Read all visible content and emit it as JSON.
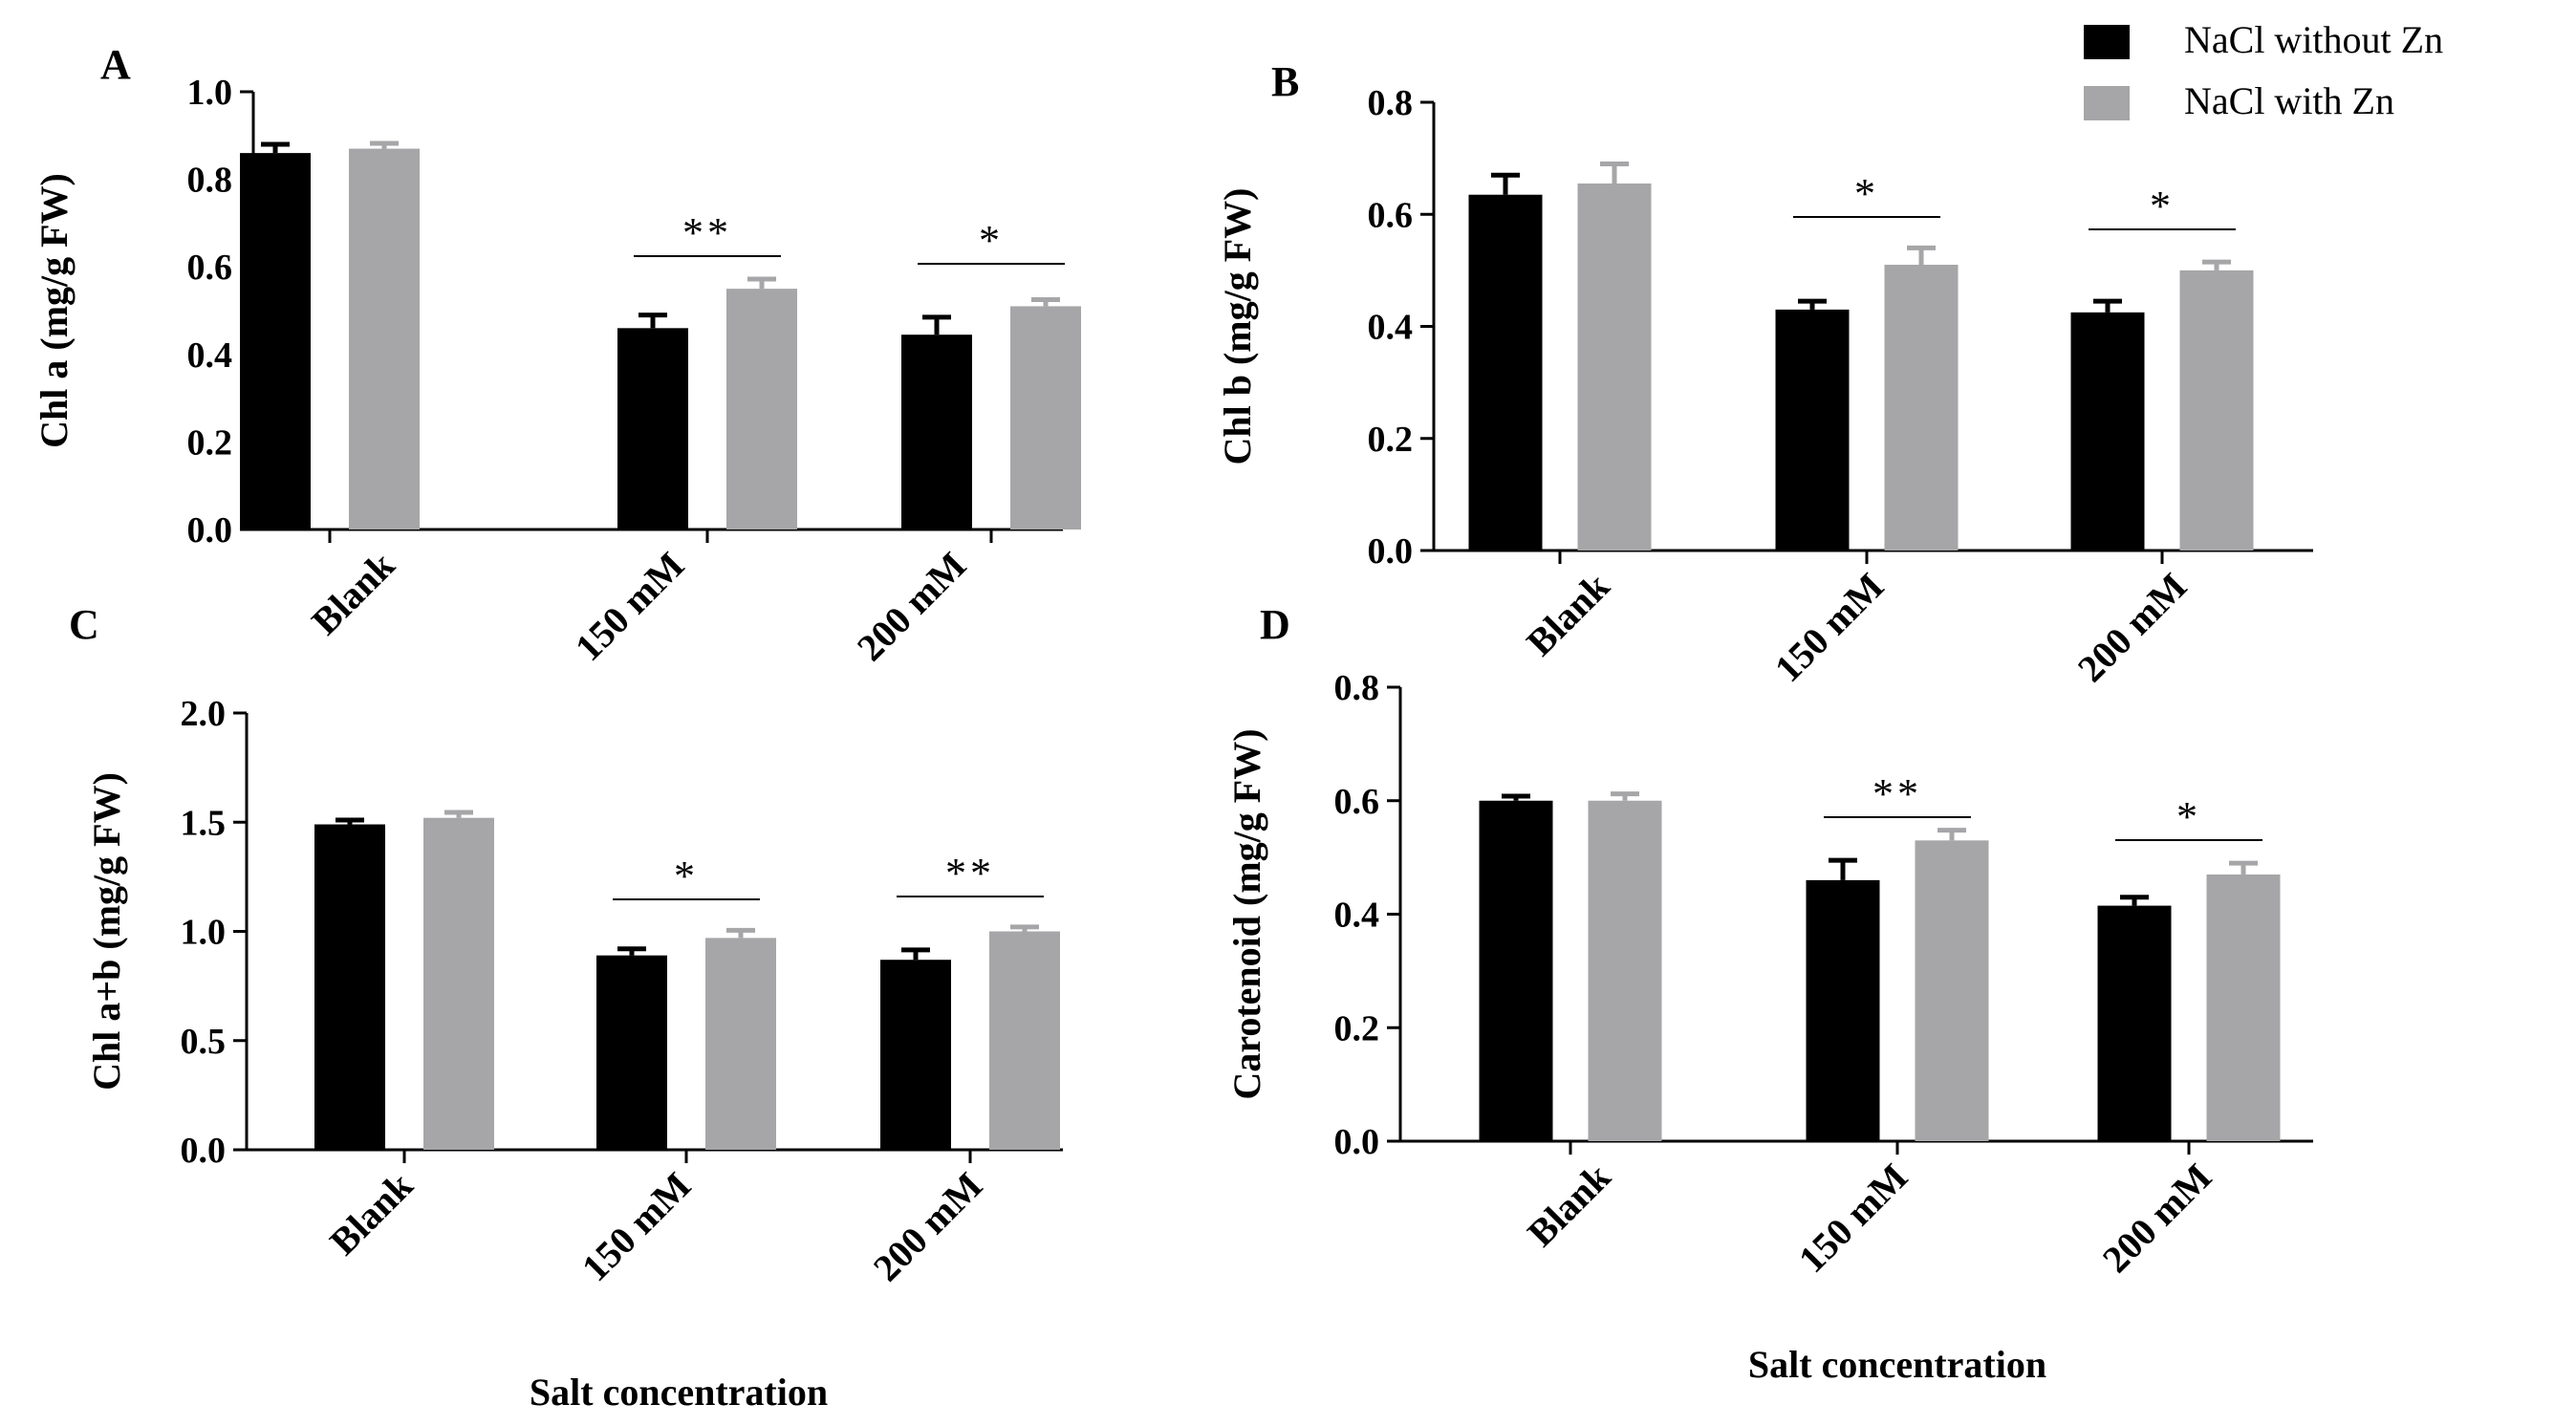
{
  "figure": {
    "legend": [
      {
        "label": "NaCl without Zn",
        "color": "#000000"
      },
      {
        "label": "NaCl with Zn",
        "color": "#a6a6a8"
      }
    ],
    "bottom_labels": [
      "Salt concentration",
      "Salt concentration"
    ]
  },
  "chart_data": [
    {
      "type": "bar",
      "panel": "A",
      "ylabel": "Chl a (mg/g FW)",
      "ylim": [
        0,
        1.0
      ],
      "yticks": [
        "0.0",
        "0.2",
        "0.4",
        "0.6",
        "0.8",
        "1.0"
      ],
      "categories": [
        "Blank",
        "150 mM",
        "200 mM"
      ],
      "series": [
        {
          "name": "NaCl without Zn",
          "values": [
            0.86,
            0.46,
            0.445
          ],
          "errors": [
            0.02,
            0.03,
            0.04
          ]
        },
        {
          "name": "NaCl with Zn",
          "values": [
            0.87,
            0.55,
            0.51
          ],
          "errors": [
            0.012,
            0.022,
            0.015
          ]
        }
      ],
      "significance": [
        "",
        "**",
        "*"
      ]
    },
    {
      "type": "bar",
      "panel": "B",
      "ylabel": "Chl b (mg/g FW)",
      "ylim": [
        0,
        0.8
      ],
      "yticks": [
        "0.0",
        "0.2",
        "0.4",
        "0.6",
        "0.8"
      ],
      "categories": [
        "Blank",
        "150 mM",
        "200 mM"
      ],
      "series": [
        {
          "name": "NaCl without Zn",
          "values": [
            0.635,
            0.43,
            0.425
          ],
          "errors": [
            0.035,
            0.015,
            0.02
          ]
        },
        {
          "name": "NaCl with Zn",
          "values": [
            0.655,
            0.51,
            0.5
          ],
          "errors": [
            0.035,
            0.03,
            0.015
          ]
        }
      ],
      "significance": [
        "",
        "*",
        "*"
      ]
    },
    {
      "type": "bar",
      "panel": "C",
      "ylabel": "Chl a+b (mg/g FW)",
      "ylim": [
        0,
        2.0
      ],
      "yticks": [
        "0.0",
        "0.5",
        "1.0",
        "1.5",
        "2.0"
      ],
      "categories": [
        "Blank",
        "150 mM",
        "200 mM"
      ],
      "series": [
        {
          "name": "NaCl without Zn",
          "values": [
            1.49,
            0.89,
            0.87
          ],
          "errors": [
            0.02,
            0.03,
            0.045
          ]
        },
        {
          "name": "NaCl with Zn",
          "values": [
            1.52,
            0.97,
            1.0
          ],
          "errors": [
            0.025,
            0.035,
            0.02
          ]
        }
      ],
      "significance": [
        "",
        "*",
        "**"
      ]
    },
    {
      "type": "bar",
      "panel": "D",
      "ylabel": "Carotenoid (mg/g FW)",
      "ylim": [
        0,
        0.8
      ],
      "yticks": [
        "0.0",
        "0.2",
        "0.4",
        "0.6",
        "0.8"
      ],
      "categories": [
        "Blank",
        "150 mM",
        "200 mM"
      ],
      "series": [
        {
          "name": "NaCl without Zn",
          "values": [
            0.6,
            0.46,
            0.415
          ],
          "errors": [
            0.008,
            0.035,
            0.015
          ]
        },
        {
          "name": "NaCl with Zn",
          "values": [
            0.6,
            0.53,
            0.47
          ],
          "errors": [
            0.012,
            0.018,
            0.02
          ]
        }
      ],
      "significance": [
        "",
        "**",
        "*"
      ]
    }
  ]
}
